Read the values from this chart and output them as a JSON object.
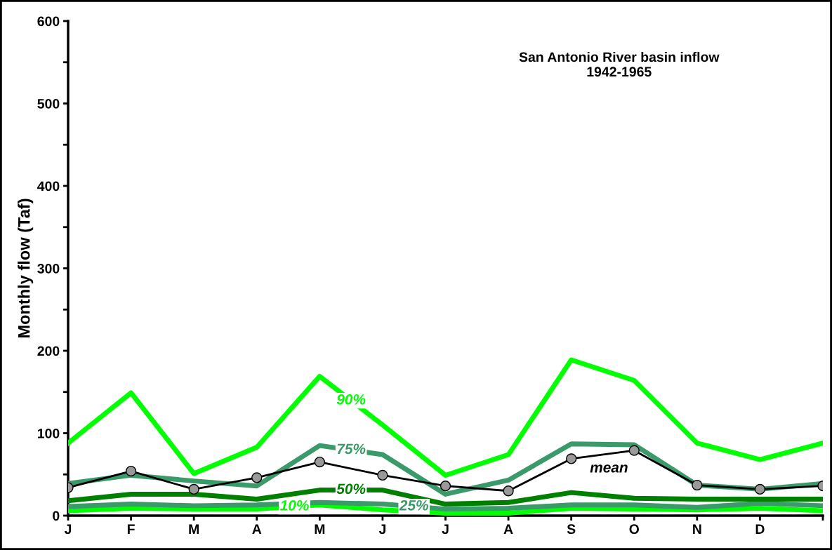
{
  "chart_data": {
    "type": "line",
    "title": "San Antonio River basin inflow\n1942-1965",
    "ylabel": "Monthly flow (Taf)",
    "categories": [
      "J",
      "F",
      "M",
      "A",
      "M",
      "J",
      "J",
      "A",
      "S",
      "O",
      "N",
      "D",
      null
    ],
    "ylim": [
      0,
      600
    ],
    "yticks": [
      0,
      {
        "value": 50,
        "label": null
      },
      100,
      {
        "value": 150,
        "label": null
      },
      200,
      {
        "value": 250,
        "label": null
      },
      300,
      {
        "value": 350,
        "label": null
      },
      400,
      {
        "value": 450,
        "label": null
      },
      500,
      {
        "value": 550,
        "label": null
      },
      600
    ],
    "grid": false,
    "legend": false,
    "series": [
      {
        "name": "90%",
        "color": "#00ff00",
        "values": [
          88,
          149,
          51,
          83,
          169,
          110,
          49,
          74,
          189,
          164,
          88,
          68,
          88
        ]
      },
      {
        "name": "75%",
        "color": "#3a9a6a",
        "values": [
          39,
          49,
          42,
          36,
          85,
          74,
          26,
          43,
          87,
          86,
          37,
          32,
          39
        ]
      },
      {
        "name": "mean",
        "color": "#000000",
        "marker": "circle",
        "values": [
          34,
          54,
          32,
          46,
          65,
          49,
          36,
          30,
          69,
          79,
          37,
          32,
          36
        ]
      },
      {
        "name": "50%",
        "color": "#008000",
        "values": [
          18,
          26,
          26,
          20,
          31,
          31,
          14,
          16,
          28,
          21,
          20,
          20,
          20
        ]
      },
      {
        "name": "25%",
        "color": "#3a9a6a",
        "values": [
          11,
          14,
          12,
          13,
          16,
          14,
          8,
          9,
          13,
          13,
          10,
          15,
          12
        ]
      },
      {
        "name": "10%",
        "color": "#00ff00",
        "values": [
          6,
          9,
          8,
          8,
          13,
          7,
          3,
          3,
          9,
          8,
          7,
          9,
          6
        ]
      }
    ]
  }
}
